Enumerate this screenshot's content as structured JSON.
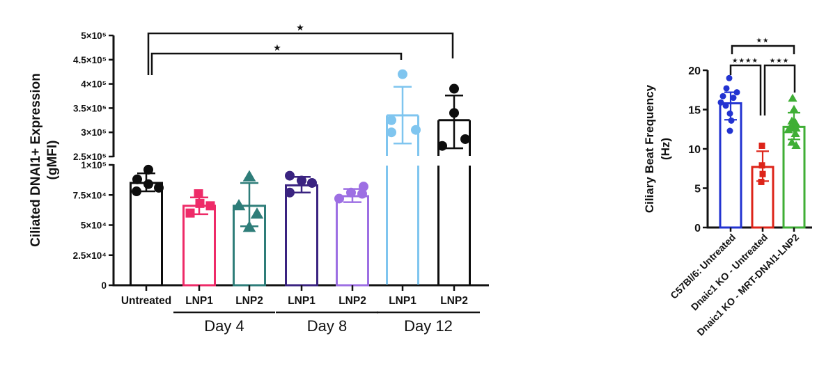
{
  "figure": {
    "background": "#ffffff",
    "axis_color": "#111111"
  },
  "chart_data": [
    {
      "type": "bar",
      "id": "dnai1-expression",
      "title": "",
      "ylabel_line1": "Ciliated DNAI1+ Expression",
      "ylabel_line2": "(gMFI)",
      "axis_break": true,
      "upper_axis": {
        "range": [
          250000,
          500000
        ],
        "ticks": [
          {
            "v": 500000,
            "label": "5×10⁵"
          },
          {
            "v": 450000,
            "label": "4.5×10⁵"
          },
          {
            "v": 400000,
            "label": "4×10⁵"
          },
          {
            "v": 350000,
            "label": "3.5×10⁵"
          },
          {
            "v": 300000,
            "label": "3×10⁵"
          },
          {
            "v": 250000,
            "label": "2.5×10⁵"
          }
        ]
      },
      "lower_axis": {
        "range": [
          0,
          100000
        ],
        "ticks": [
          {
            "v": 100000,
            "label": "1×10⁵"
          },
          {
            "v": 75000,
            "label": "7.5×10⁴"
          },
          {
            "v": 50000,
            "label": "5×10⁴"
          },
          {
            "v": 25000,
            "label": "2.5×10⁴"
          },
          {
            "v": 0,
            "label": "0"
          }
        ]
      },
      "groups": [
        {
          "label": "Untreated",
          "day": null,
          "color": "#0d0d0d",
          "marker": "circle",
          "bar": 85000,
          "err": [
            78000,
            93000
          ],
          "points": [
            96000,
            88000,
            84000,
            81000,
            78000
          ],
          "jitter": [
            3,
            -13,
            3,
            18,
            -14
          ]
        },
        {
          "label": "LNP1",
          "day": "Day 4",
          "color": "#ee2b68",
          "marker": "square",
          "bar": 66000,
          "err": [
            59000,
            73000
          ],
          "points": [
            76000,
            68000,
            66000,
            60000
          ],
          "jitter": [
            -1,
            1,
            16,
            -13
          ]
        },
        {
          "label": "LNP2",
          "day": "Day 4",
          "color": "#2e7d79",
          "marker": "triangle",
          "bar": 66000,
          "err": [
            49000,
            85000
          ],
          "points": [
            90000,
            66000,
            59000,
            48000
          ],
          "jitter": [
            0,
            -15,
            11,
            0
          ]
        },
        {
          "label": "LNP1",
          "day": "Day 8",
          "color": "#3a2380",
          "marker": "circle",
          "bar": 83000,
          "err": [
            77000,
            90000
          ],
          "points": [
            91000,
            87000,
            85000,
            77000
          ],
          "jitter": [
            -17,
            0,
            15,
            -17
          ]
        },
        {
          "label": "LNP2",
          "day": "Day 8",
          "color": "#9d6fe3",
          "marker": "circle",
          "bar": 74000,
          "err": [
            69000,
            80000
          ],
          "points": [
            82000,
            77000,
            76000,
            72000
          ],
          "jitter": [
            16,
            -2,
            14,
            -19
          ]
        },
        {
          "label": "LNP1",
          "day": "Day 12",
          "color": "#7fc5ef",
          "marker": "circle",
          "bar": 335000,
          "err": [
            277000,
            394000
          ],
          "points": [
            420000,
            325000,
            305000,
            300000
          ],
          "jitter": [
            0,
            -16,
            19,
            -16
          ]
        },
        {
          "label": "LNP2",
          "day": "Day 12",
          "color": "#0d0d0d",
          "marker": "circle",
          "bar": 325000,
          "err": [
            267000,
            376000
          ],
          "points": [
            390000,
            340000,
            286000,
            272000
          ],
          "jitter": [
            0,
            0,
            16,
            -17
          ]
        }
      ],
      "day_labels": [
        {
          "label": "Day 4",
          "from": 1,
          "to": 2
        },
        {
          "label": "Day 8",
          "from": 3,
          "to": 4
        },
        {
          "label": "Day 12",
          "from": 5,
          "to": 6
        }
      ],
      "significance": [
        {
          "from": 0,
          "to": 6,
          "label": "*"
        },
        {
          "from": 0,
          "to": 5,
          "label": "*"
        }
      ]
    },
    {
      "type": "bar",
      "id": "ciliary-beat-frequency",
      "title": "",
      "ylabel_line1": "Ciliary Beat Frequency",
      "ylabel_line2": "(Hz)",
      "ylim": [
        0,
        20
      ],
      "yticks": [
        {
          "v": 0,
          "label": "0"
        },
        {
          "v": 5,
          "label": "5"
        },
        {
          "v": 10,
          "label": "10"
        },
        {
          "v": 15,
          "label": "15"
        },
        {
          "v": 20,
          "label": "20"
        }
      ],
      "groups": [
        {
          "label": "C57Bl/6: Untreated",
          "color": "#2233d1",
          "marker": "circle",
          "bar": 15.8,
          "err": [
            13.7,
            17.2
          ],
          "points": [
            19.0,
            17.7,
            17.2,
            16.7,
            16.5,
            15.9,
            15.5,
            14.5,
            13.6,
            12.3
          ],
          "jitter": [
            -2,
            -6,
            9,
            -11,
            4,
            -14,
            -7,
            -1,
            1,
            -1
          ]
        },
        {
          "label": "Dnaic1 KO - Untreated",
          "color": "#dd2419",
          "marker": "square",
          "bar": 7.7,
          "err": [
            5.9,
            9.7
          ],
          "points": [
            10.4,
            7.9,
            6.8,
            5.8
          ],
          "jitter": [
            -1,
            -1,
            0,
            -2
          ]
        },
        {
          "label": "Dnaic1 KO - MRT-DNAI1-LNP2",
          "color": "#3fae35",
          "marker": "triangle",
          "bar": 12.8,
          "err": [
            11.2,
            14.6
          ],
          "points": [
            16.4,
            15.0,
            13.5,
            13.3,
            12.7,
            12.6,
            12.4,
            11.9,
            10.8,
            10.4
          ],
          "jitter": [
            -2,
            0,
            -3,
            2,
            -5,
            3,
            -8,
            2,
            -3,
            3
          ]
        }
      ],
      "significance": [
        {
          "from": 0,
          "to": 2,
          "label": "**"
        },
        {
          "from": 0,
          "to": 1,
          "label": "****"
        },
        {
          "from": 1,
          "to": 2,
          "label": "***"
        }
      ]
    }
  ]
}
